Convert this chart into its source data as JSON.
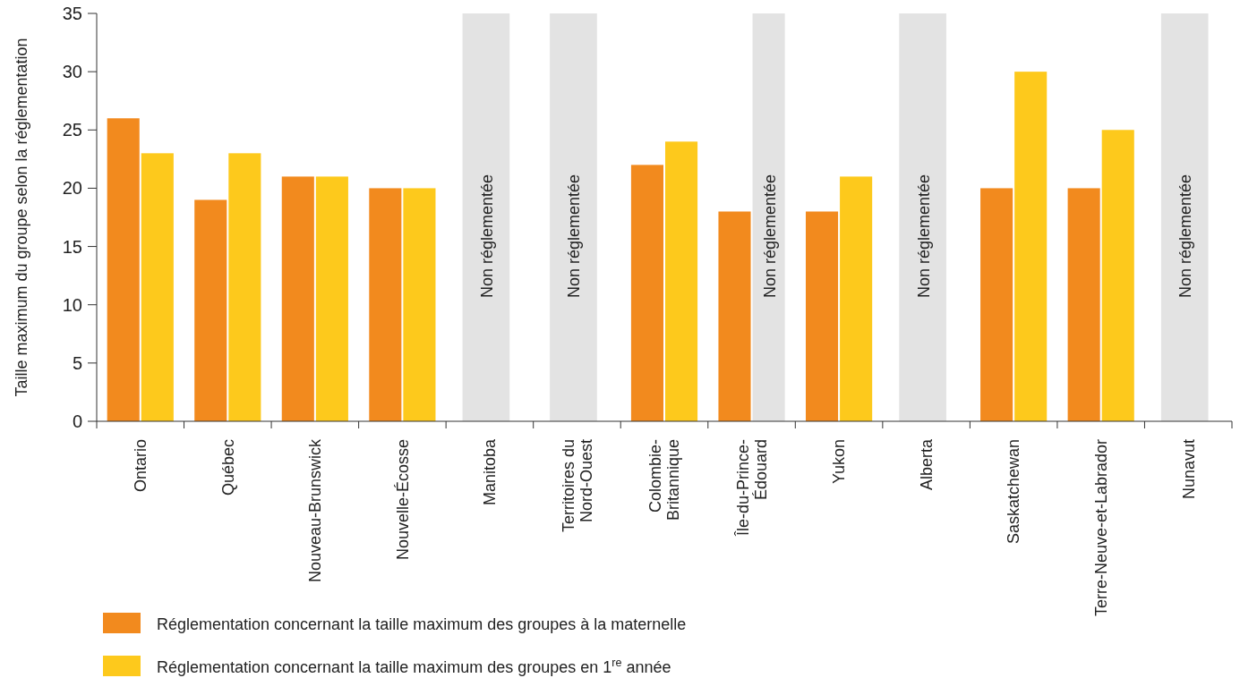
{
  "chart_data": {
    "type": "bar",
    "ylabel": "Taille maximum du groupe selon la réglementation",
    "categories": [
      "Ontario",
      "Québec",
      "Nouveau-Brunswick",
      "Nouvelle-Écosse",
      "Manitoba",
      "Territoires du\nNord-Ouest",
      "Colombie-\nBritannique",
      "Île-du-Prince-\nÉdouard",
      "Yukon",
      "Alberta",
      "Saskatchewan",
      "Terre-Neuve-et-Labrador",
      "Nunavut"
    ],
    "series": [
      {
        "name": "Réglementation concernant la taille maximum des groupes à la maternelle",
        "color": "#f28a1e",
        "values": [
          26,
          19,
          21,
          20,
          null,
          null,
          22,
          18,
          18,
          null,
          20,
          20,
          null
        ]
      },
      {
        "name": "Réglementation concernant la taille maximum des groupes en 1$^{re}$ année",
        "color": "#fdc91c",
        "values": [
          23,
          23,
          21,
          20,
          null,
          null,
          24,
          null,
          21,
          null,
          30,
          25,
          null
        ]
      }
    ],
    "bands": [
      {
        "axis": "x",
        "from": "Manitoba",
        "to": "Manitoba",
        "label": "Non réglementée",
        "color": "#e3e3e3"
      },
      {
        "axis": "x",
        "from": "Territoires du\nNord-Ouest",
        "to": "Territoires du\nNord-Ouest",
        "label": "Non réglementée",
        "color": "#e3e3e3"
      },
      {
        "axis": "x",
        "from": "Île-du-Prince-\nÉdouard",
        "to": "Île-du-Prince-\nÉdouard",
        "label": "Non réglementée",
        "color": "#e3e3e3"
      },
      {
        "axis": "x",
        "from": "Alberta",
        "to": "Alberta",
        "label": "Non réglementée",
        "color": "#e3e3e3"
      },
      {
        "axis": "x",
        "from": "Nunavut",
        "to": "Nunavut",
        "label": "Non réglementée",
        "color": "#e3e3e3"
      }
    ],
    "ylim": [
      0,
      35
    ],
    "yticks": [
      0,
      5,
      10,
      15,
      20,
      25,
      30,
      35
    ],
    "grid": false,
    "legend": "bottom"
  }
}
